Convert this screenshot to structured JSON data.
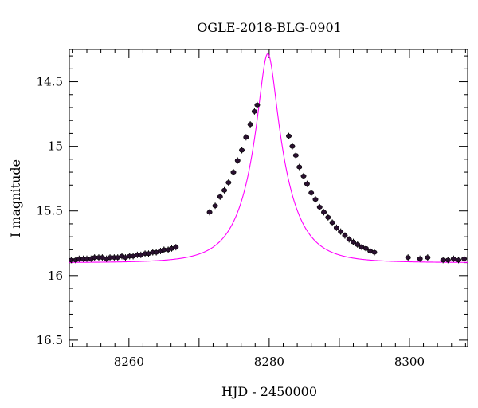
{
  "chart_data": {
    "type": "scatter",
    "title": "OGLE-2018-BLG-0901",
    "xlabel": "HJD - 2450000",
    "ylabel": "I magnitude",
    "xlim": [
      8251.5,
      8308.3
    ],
    "ylim": [
      16.55,
      14.25
    ],
    "y_inverted": true,
    "xticks": [
      8260,
      8280,
      8300
    ],
    "xtick_labels": [
      "8260",
      "8280",
      "8300"
    ],
    "yticks": [
      14.5,
      15,
      15.5,
      16,
      16.5
    ],
    "ytick_labels": [
      "14.5",
      "15",
      "15.5",
      "16",
      "16.5"
    ],
    "grid": false,
    "model_color": "#ff00ff",
    "point_color": "#2a1030",
    "model": {
      "t0": 8279.8,
      "tE": 5.0,
      "u0": 0.23,
      "baseline_mag": 15.9
    },
    "points": {
      "x": [
        8251.8,
        8252.4,
        8252.9,
        8253.5,
        8254.0,
        8254.6,
        8255.1,
        8255.7,
        8256.2,
        8256.8,
        8257.3,
        8257.9,
        8258.4,
        8259.0,
        8259.5,
        8260.1,
        8260.6,
        8261.2,
        8261.7,
        8262.3,
        8262.8,
        8263.4,
        8263.9,
        8264.5,
        8265.0,
        8265.6,
        8266.1,
        8266.7,
        8271.5,
        8272.3,
        8273.0,
        8273.6,
        8274.2,
        8274.9,
        8275.5,
        8276.1,
        8276.7,
        8277.3,
        8277.9,
        8278.3,
        8282.8,
        8283.3,
        8283.8,
        8284.3,
        8284.9,
        8285.4,
        8286.0,
        8286.6,
        8287.2,
        8287.8,
        8288.4,
        8289.0,
        8289.6,
        8290.2,
        8290.8,
        8291.4,
        8292.0,
        8292.6,
        8293.2,
        8293.8,
        8294.4,
        8295.0,
        8299.8,
        8301.5,
        8302.6,
        8304.8,
        8305.5,
        8306.3,
        8307.0,
        8307.8
      ],
      "y": [
        15.88,
        15.88,
        15.87,
        15.87,
        15.87,
        15.87,
        15.86,
        15.86,
        15.86,
        15.87,
        15.86,
        15.86,
        15.86,
        15.85,
        15.86,
        15.85,
        15.85,
        15.84,
        15.84,
        15.83,
        15.83,
        15.82,
        15.82,
        15.81,
        15.8,
        15.8,
        15.79,
        15.78,
        15.51,
        15.46,
        15.39,
        15.34,
        15.28,
        15.2,
        15.11,
        15.03,
        14.93,
        14.83,
        14.73,
        14.68,
        14.92,
        15.0,
        15.07,
        15.16,
        15.23,
        15.29,
        15.36,
        15.41,
        15.47,
        15.51,
        15.55,
        15.59,
        15.63,
        15.66,
        15.69,
        15.72,
        15.74,
        15.76,
        15.78,
        15.79,
        15.81,
        15.82,
        15.86,
        15.87,
        15.86,
        15.88,
        15.88,
        15.87,
        15.88,
        15.87
      ]
    }
  }
}
